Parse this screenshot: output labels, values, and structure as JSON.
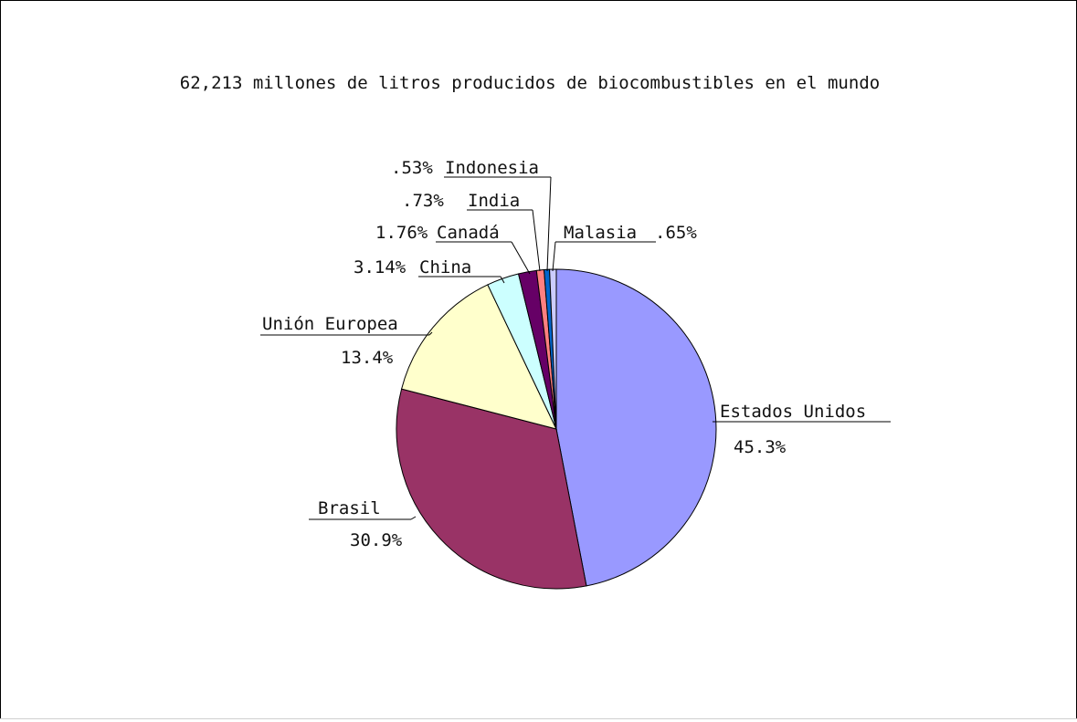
{
  "chart_data": {
    "type": "pie",
    "title": "62,213 millones de litros producidos de biocombustibles en el mundo",
    "start_angle_deg": 0,
    "direction": "clockwise",
    "slices": [
      {
        "name": "Estados Unidos",
        "percent_label": "45.3%",
        "value": 45.3,
        "color": "#9999ff"
      },
      {
        "name": "Brasil",
        "percent_label": "30.9%",
        "value": 30.9,
        "color": "#993366"
      },
      {
        "name": "Unión Europea",
        "percent_label": "13.4%",
        "value": 13.4,
        "color": "#ffffcc"
      },
      {
        "name": "China",
        "percent_label": "3.14%",
        "value": 3.14,
        "color": "#ccffff"
      },
      {
        "name": "Canadá",
        "percent_label": "1.76%",
        "value": 1.76,
        "color": "#660066"
      },
      {
        "name": "India",
        "percent_label": ".73%",
        "value": 0.73,
        "color": "#ff8080"
      },
      {
        "name": "Indonesia",
        "percent_label": ".53%",
        "value": 0.53,
        "color": "#0066cc"
      },
      {
        "name": "Malasia",
        "percent_label": ".65%",
        "value": 0.65,
        "color": "#ccccff"
      }
    ]
  }
}
